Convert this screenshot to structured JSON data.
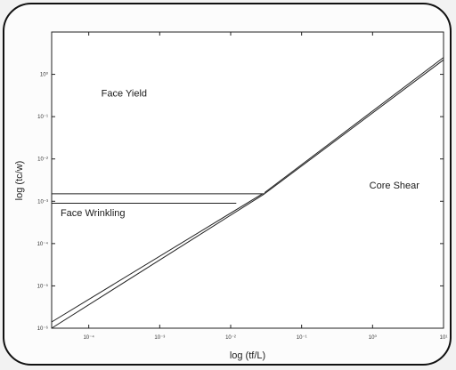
{
  "chart_data": {
    "type": "line",
    "title": "",
    "xlabel": "log (tf/L)",
    "ylabel": "log (tc/w)",
    "xscale": "log",
    "yscale": "log",
    "xlim": [
      3e-05,
      10
    ],
    "ylim": [
      1e-06,
      10
    ],
    "x_ticks": [
      0.0001,
      0.001,
      0.01,
      0.1,
      1,
      10
    ],
    "x_tick_labels": [
      "10⁻⁴",
      "10⁻³",
      "10⁻²",
      "10⁻¹",
      "10⁰",
      "10¹"
    ],
    "y_ticks": [
      1e-06,
      1e-05,
      0.0001,
      0.001,
      0.01,
      0.1,
      1
    ],
    "y_tick_labels": [
      "10⁻⁶",
      "10⁻⁵",
      "10⁻⁴",
      "10⁻³",
      "10⁻²",
      "10⁻¹",
      "10⁰"
    ],
    "grid": false,
    "series": [
      {
        "x": [
          3e-05,
          0.03
        ],
        "y": [
          1e-06,
          0.0015
        ]
      },
      {
        "x": [
          3e-05,
          0.028
        ],
        "y": [
          1.4e-06,
          0.0015
        ]
      },
      {
        "x": [
          0.03,
          10
        ],
        "y": [
          0.0015,
          2.2
        ]
      },
      {
        "x": [
          0.03,
          10
        ],
        "y": [
          0.0016,
          2.5
        ]
      },
      {
        "x": [
          3e-05,
          0.03
        ],
        "y": [
          0.0015,
          0.0015
        ]
      },
      {
        "x": [
          3e-05,
          0.012
        ],
        "y": [
          0.0009,
          0.0009
        ]
      }
    ],
    "annotations": [
      {
        "text": "Face Yield",
        "x": 0.00015,
        "y": 0.3
      },
      {
        "text": "Core Shear",
        "x": 0.9,
        "y": 0.002
      },
      {
        "text": "Face Wrinkling",
        "x": 4e-05,
        "y": 0.00045
      }
    ]
  }
}
